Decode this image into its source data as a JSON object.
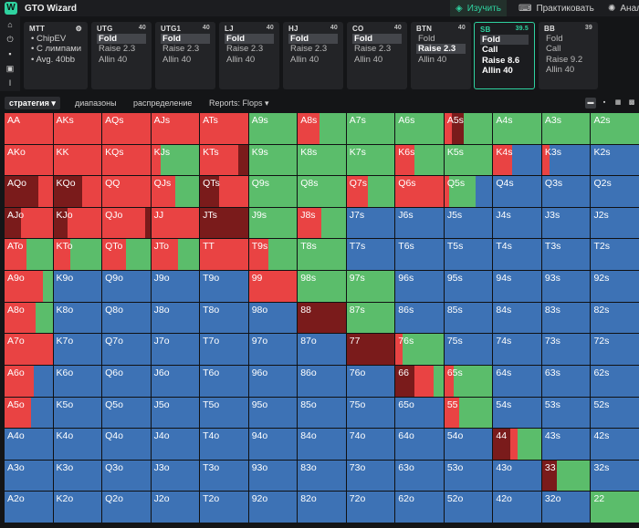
{
  "app": {
    "title": "GTO Wizard",
    "logo": "W"
  },
  "nav": [
    {
      "label": "Изучить",
      "icon": "study-icon",
      "glyph": "◈",
      "active": true
    },
    {
      "label": "Практиковать",
      "icon": "gamepad-icon",
      "glyph": "⌨",
      "active": false
    },
    {
      "label": "Анал",
      "icon": "lightbulb-icon",
      "glyph": "✺",
      "active": false
    }
  ],
  "tools": [
    {
      "name": "home-icon",
      "glyph": "⌂"
    },
    {
      "name": "power-icon",
      "glyph": "⏻"
    },
    {
      "name": "save-icon",
      "glyph": "▪"
    },
    {
      "name": "bank-icon",
      "glyph": "▣"
    },
    {
      "name": "text-cursor-icon",
      "glyph": "Ι"
    }
  ],
  "mtt": {
    "title": "MTT",
    "items": [
      "ChipEV",
      "С лимпами",
      "Avg. 40bb"
    ]
  },
  "positions": [
    {
      "name": "UTG",
      "stack": "40",
      "options": [
        "Fold",
        "Raise 2.3",
        "Allin 40"
      ],
      "selected": 0
    },
    {
      "name": "UTG1",
      "stack": "40",
      "options": [
        "Fold",
        "Raise 2.3",
        "Allin 40"
      ],
      "selected": 0
    },
    {
      "name": "LJ",
      "stack": "40",
      "options": [
        "Fold",
        "Raise 2.3",
        "Allin 40"
      ],
      "selected": 0
    },
    {
      "name": "HJ",
      "stack": "40",
      "options": [
        "Fold",
        "Raise 2.3",
        "Allin 40"
      ],
      "selected": 0
    },
    {
      "name": "CO",
      "stack": "40",
      "options": [
        "Fold",
        "Raise 2.3",
        "Allin 40"
      ],
      "selected": 0
    },
    {
      "name": "BTN",
      "stack": "40",
      "options": [
        "Fold",
        "Raise 2.3",
        "Allin 40"
      ],
      "selected": 1
    },
    {
      "name": "SB",
      "stack": "39.5",
      "options": [
        "Fold",
        "Call",
        "Raise 8.6",
        "Allin 40"
      ],
      "selected": 0,
      "active": true
    },
    {
      "name": "BB",
      "stack": "39",
      "options": [
        "Fold",
        "Call",
        "Raise 9.2",
        "Allin 40"
      ],
      "selected": -1
    }
  ],
  "tabs": [
    {
      "label": "стратегия ▾",
      "active": true
    },
    {
      "label": "диапазоны",
      "active": false
    },
    {
      "label": "распределение",
      "active": false
    },
    {
      "label": "Reports: Flops ▾",
      "active": false
    }
  ],
  "view_buttons": [
    {
      "name": "view-single-icon",
      "glyph": "▬",
      "active": true
    },
    {
      "name": "view-split-icon",
      "glyph": "▪",
      "active": false
    },
    {
      "name": "view-quad-icon",
      "glyph": "▦",
      "active": false
    },
    {
      "name": "view-grid-icon",
      "glyph": "▩",
      "active": false
    }
  ],
  "colors": {
    "allin": "#7a1b1b",
    "raise": "#e94343",
    "call": "#5bbd6b",
    "fold": "#3d72b5",
    "accent": "#2fd3a0"
  },
  "matrix": {
    "ranks": [
      "A",
      "K",
      "Q",
      "J",
      "T",
      "9",
      "8",
      "7",
      "6",
      "5",
      "4",
      "3",
      "2"
    ],
    "cells": [
      [
        {
          "d": [
            "r",
            100
          ]
        },
        {
          "d": [
            "r",
            100
          ]
        },
        {
          "d": [
            "r",
            100
          ]
        },
        {
          "d": [
            "r",
            100
          ]
        },
        {
          "d": [
            "r",
            100
          ]
        },
        {
          "d": [
            "c",
            100
          ]
        },
        {
          "d": [
            "r",
            45,
            "c",
            55
          ]
        },
        {
          "d": [
            "c",
            100
          ]
        },
        {
          "d": [
            "c",
            100
          ]
        },
        {
          "d": [
            "r",
            15,
            "a",
            25,
            "c",
            60
          ]
        },
        {
          "d": [
            "c",
            100
          ]
        },
        {
          "d": [
            "c",
            100
          ]
        },
        {
          "d": [
            "c",
            100
          ]
        }
      ],
      [
        {
          "d": [
            "r",
            100
          ]
        },
        {
          "d": [
            "r",
            100
          ]
        },
        {
          "d": [
            "r",
            100
          ]
        },
        {
          "d": [
            "r",
            20,
            "c",
            80
          ]
        },
        {
          "d": [
            "r",
            80,
            "a",
            20
          ]
        },
        {
          "d": [
            "c",
            100
          ]
        },
        {
          "d": [
            "c",
            100
          ]
        },
        {
          "d": [
            "c",
            100
          ]
        },
        {
          "d": [
            "r",
            40,
            "c",
            60
          ]
        },
        {
          "d": [
            "c",
            100
          ]
        },
        {
          "d": [
            "r",
            40,
            "f",
            60
          ]
        },
        {
          "d": [
            "r",
            15,
            "f",
            85
          ]
        },
        {
          "d": [
            "f",
            100
          ]
        }
      ],
      [
        {
          "d": [
            "a",
            70,
            "r",
            30
          ]
        },
        {
          "d": [
            "a",
            60,
            "r",
            40
          ]
        },
        {
          "d": [
            "r",
            100
          ]
        },
        {
          "d": [
            "r",
            50,
            "c",
            50
          ]
        },
        {
          "d": [
            "a",
            40,
            "r",
            60
          ]
        },
        {
          "d": [
            "c",
            100
          ]
        },
        {
          "d": [
            "c",
            100
          ]
        },
        {
          "d": [
            "r",
            45,
            "c",
            55
          ]
        },
        {
          "d": [
            "r",
            100
          ]
        },
        {
          "d": [
            "r",
            10,
            "c",
            55,
            "f",
            35
          ]
        },
        {
          "d": [
            "f",
            100
          ]
        },
        {
          "d": [
            "f",
            100
          ]
        },
        {
          "d": [
            "f",
            100
          ]
        }
      ],
      [
        {
          "d": [
            "a",
            35,
            "r",
            65
          ]
        },
        {
          "d": [
            "a",
            30,
            "r",
            70
          ]
        },
        {
          "d": [
            "r",
            90,
            "a",
            10
          ]
        },
        {
          "d": [
            "r",
            100
          ]
        },
        {
          "d": [
            "a",
            100
          ]
        },
        {
          "d": [
            "c",
            100
          ]
        },
        {
          "d": [
            "r",
            50,
            "c",
            50
          ]
        },
        {
          "d": [
            "f",
            100
          ]
        },
        {
          "d": [
            "f",
            100
          ]
        },
        {
          "d": [
            "f",
            100
          ]
        },
        {
          "d": [
            "f",
            100
          ]
        },
        {
          "d": [
            "f",
            100
          ]
        },
        {
          "d": [
            "f",
            100
          ]
        }
      ],
      [
        {
          "d": [
            "r",
            45,
            "c",
            55
          ]
        },
        {
          "d": [
            "r",
            35,
            "c",
            65
          ]
        },
        {
          "d": [
            "r",
            50,
            "c",
            50
          ]
        },
        {
          "d": [
            "r",
            55,
            "c",
            45
          ]
        },
        {
          "d": [
            "r",
            100
          ]
        },
        {
          "d": [
            "r",
            40,
            "c",
            60
          ]
        },
        {
          "d": [
            "c",
            100
          ]
        },
        {
          "d": [
            "f",
            100
          ]
        },
        {
          "d": [
            "f",
            100
          ]
        },
        {
          "d": [
            "f",
            100
          ]
        },
        {
          "d": [
            "f",
            100
          ]
        },
        {
          "d": [
            "f",
            100
          ]
        },
        {
          "d": [
            "f",
            100
          ]
        }
      ],
      [
        {
          "d": [
            "r",
            80,
            "c",
            20
          ]
        },
        {
          "d": [
            "f",
            100
          ]
        },
        {
          "d": [
            "f",
            100
          ]
        },
        {
          "d": [
            "f",
            100
          ]
        },
        {
          "d": [
            "f",
            100
          ]
        },
        {
          "d": [
            "r",
            100
          ]
        },
        {
          "d": [
            "c",
            100
          ]
        },
        {
          "d": [
            "c",
            100
          ]
        },
        {
          "d": [
            "f",
            100
          ]
        },
        {
          "d": [
            "f",
            100
          ]
        },
        {
          "d": [
            "f",
            100
          ]
        },
        {
          "d": [
            "f",
            100
          ]
        },
        {
          "d": [
            "f",
            100
          ]
        }
      ],
      [
        {
          "d": [
            "r",
            65,
            "c",
            35
          ]
        },
        {
          "d": [
            "f",
            100
          ]
        },
        {
          "d": [
            "f",
            100
          ]
        },
        {
          "d": [
            "f",
            100
          ]
        },
        {
          "d": [
            "f",
            100
          ]
        },
        {
          "d": [
            "f",
            100
          ]
        },
        {
          "d": [
            "a",
            100
          ]
        },
        {
          "d": [
            "c",
            100
          ]
        },
        {
          "d": [
            "f",
            100
          ]
        },
        {
          "d": [
            "f",
            100
          ]
        },
        {
          "d": [
            "f",
            100
          ]
        },
        {
          "d": [
            "f",
            100
          ]
        },
        {
          "d": [
            "f",
            100
          ]
        }
      ],
      [
        {
          "d": [
            "r",
            100
          ]
        },
        {
          "d": [
            "f",
            100
          ]
        },
        {
          "d": [
            "f",
            100
          ]
        },
        {
          "d": [
            "f",
            100
          ]
        },
        {
          "d": [
            "f",
            100
          ]
        },
        {
          "d": [
            "f",
            100
          ]
        },
        {
          "d": [
            "f",
            100
          ]
        },
        {
          "d": [
            "a",
            100
          ]
        },
        {
          "d": [
            "r",
            15,
            "c",
            85
          ]
        },
        {
          "d": [
            "f",
            100
          ]
        },
        {
          "d": [
            "f",
            100
          ]
        },
        {
          "d": [
            "f",
            100
          ]
        },
        {
          "d": [
            "f",
            100
          ]
        }
      ],
      [
        {
          "d": [
            "r",
            60,
            "f",
            40
          ]
        },
        {
          "d": [
            "f",
            100
          ]
        },
        {
          "d": [
            "f",
            100
          ]
        },
        {
          "d": [
            "f",
            100
          ]
        },
        {
          "d": [
            "f",
            100
          ]
        },
        {
          "d": [
            "f",
            100
          ]
        },
        {
          "d": [
            "f",
            100
          ]
        },
        {
          "d": [
            "f",
            100
          ]
        },
        {
          "d": [
            "a",
            40,
            "r",
            40,
            "c",
            20
          ]
        },
        {
          "d": [
            "r",
            20,
            "c",
            80
          ]
        },
        {
          "d": [
            "f",
            100
          ]
        },
        {
          "d": [
            "f",
            100
          ]
        },
        {
          "d": [
            "f",
            100
          ]
        }
      ],
      [
        {
          "d": [
            "r",
            55,
            "f",
            45
          ]
        },
        {
          "d": [
            "f",
            100
          ]
        },
        {
          "d": [
            "f",
            100
          ]
        },
        {
          "d": [
            "f",
            100
          ]
        },
        {
          "d": [
            "f",
            100
          ]
        },
        {
          "d": [
            "f",
            100
          ]
        },
        {
          "d": [
            "f",
            100
          ]
        },
        {
          "d": [
            "f",
            100
          ]
        },
        {
          "d": [
            "f",
            100
          ]
        },
        {
          "d": [
            "r",
            30,
            "c",
            70
          ]
        },
        {
          "d": [
            "f",
            100
          ]
        },
        {
          "d": [
            "f",
            100
          ]
        },
        {
          "d": [
            "f",
            100
          ]
        }
      ],
      [
        {
          "d": [
            "f",
            100
          ]
        },
        {
          "d": [
            "f",
            100
          ]
        },
        {
          "d": [
            "f",
            100
          ]
        },
        {
          "d": [
            "f",
            100
          ]
        },
        {
          "d": [
            "f",
            100
          ]
        },
        {
          "d": [
            "f",
            100
          ]
        },
        {
          "d": [
            "f",
            100
          ]
        },
        {
          "d": [
            "f",
            100
          ]
        },
        {
          "d": [
            "f",
            100
          ]
        },
        {
          "d": [
            "f",
            100
          ]
        },
        {
          "d": [
            "a",
            35,
            "r",
            15,
            "c",
            50
          ]
        },
        {
          "d": [
            "f",
            100
          ]
        },
        {
          "d": [
            "f",
            100
          ]
        }
      ],
      [
        {
          "d": [
            "f",
            100
          ]
        },
        {
          "d": [
            "f",
            100
          ]
        },
        {
          "d": [
            "f",
            100
          ]
        },
        {
          "d": [
            "f",
            100
          ]
        },
        {
          "d": [
            "f",
            100
          ]
        },
        {
          "d": [
            "f",
            100
          ]
        },
        {
          "d": [
            "f",
            100
          ]
        },
        {
          "d": [
            "f",
            100
          ]
        },
        {
          "d": [
            "f",
            100
          ]
        },
        {
          "d": [
            "f",
            100
          ]
        },
        {
          "d": [
            "f",
            100
          ]
        },
        {
          "d": [
            "a",
            30,
            "c",
            70
          ]
        },
        {
          "d": [
            "f",
            100
          ]
        }
      ],
      [
        {
          "d": [
            "f",
            100
          ]
        },
        {
          "d": [
            "f",
            100
          ]
        },
        {
          "d": [
            "f",
            100
          ]
        },
        {
          "d": [
            "f",
            100
          ]
        },
        {
          "d": [
            "f",
            100
          ]
        },
        {
          "d": [
            "f",
            100
          ]
        },
        {
          "d": [
            "f",
            100
          ]
        },
        {
          "d": [
            "f",
            100
          ]
        },
        {
          "d": [
            "f",
            100
          ]
        },
        {
          "d": [
            "f",
            100
          ]
        },
        {
          "d": [
            "f",
            100
          ]
        },
        {
          "d": [
            "f",
            100
          ]
        },
        {
          "d": [
            "c",
            100
          ]
        }
      ]
    ]
  }
}
